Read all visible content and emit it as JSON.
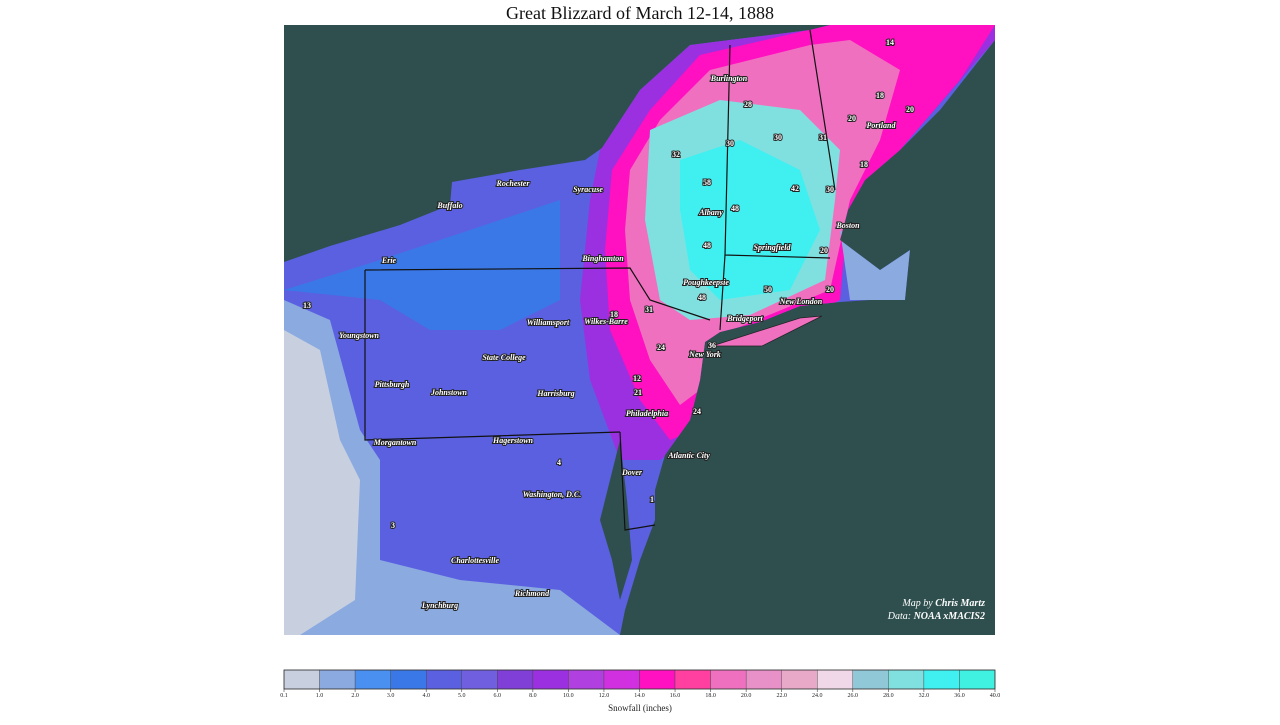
{
  "title": "Great Blizzard of March 12-14, 1888",
  "cities": [
    "Burlington",
    "Portland",
    "Rochester",
    "Syracuse",
    "Buffalo",
    "Albany",
    "Boston",
    "Springfield",
    "Erie",
    "Binghamton",
    "Poughkeepsie",
    "New London",
    "Youngstown",
    "Williamsport",
    "Wilkes-Barre",
    "Bridgeport",
    "New York",
    "State College",
    "Pittsburgh",
    "Johnstown",
    "Harrisburg",
    "Philadelphia",
    "Morgantown",
    "Hagerstown",
    "Atlantic City",
    "Dover",
    "Washington, D.C.",
    "Charlottesville",
    "Richmond",
    "Lynchburg"
  ],
  "snowfall_labels": [
    14,
    18,
    20,
    20,
    28,
    30,
    30,
    31,
    32,
    58,
    42,
    30,
    18,
    48,
    48,
    20,
    48,
    50,
    20,
    13,
    31,
    18,
    24,
    36,
    12,
    21,
    24,
    4,
    1,
    3
  ],
  "credits": {
    "map_by_label": "Map by",
    "map_by": "Chris Martz",
    "data_label": "Data:",
    "data": "NOAA xMACIS2"
  },
  "colorbar": {
    "label": "Snowfall (inches)",
    "ticks": [
      0.1,
      {
        "value": 1,
        "label": "1.0"
      },
      {
        "value": 2,
        "label": "2.0"
      },
      {
        "value": 3,
        "label": "3.0"
      },
      {
        "value": 4,
        "label": "4.0"
      },
      {
        "value": 5,
        "label": "5.0"
      },
      {
        "value": 6,
        "label": "6.0"
      },
      {
        "value": 8,
        "label": "8.0"
      },
      {
        "value": 10,
        "label": "10.0"
      },
      {
        "value": 12,
        "label": "12.0"
      },
      {
        "value": 14,
        "label": "14.0"
      },
      {
        "value": 16,
        "label": "16.0"
      },
      {
        "value": 18,
        "label": "18.0"
      },
      {
        "value": 20,
        "label": "20.0"
      },
      {
        "value": 22,
        "label": "22.0"
      },
      {
        "value": 24,
        "label": "24.0"
      },
      {
        "value": 26,
        "label": "26.0"
      },
      {
        "value": 28,
        "label": "28.0"
      },
      {
        "value": 32,
        "label": "32.0"
      },
      {
        "value": 36,
        "label": "36.0"
      },
      {
        "value": 40,
        "label": "40.0"
      }
    ],
    "colors": [
      "#c8d0e0",
      "#8aaae0",
      "#4a90f0",
      "#3a78e8",
      "#5a60e0",
      "#7060e0",
      "#8040d8",
      "#9a30e0",
      "#b040e0",
      "#d030e0",
      "#ff10c0",
      "#ff40a0",
      "#f070c0",
      "#e890c8",
      "#e8a8c8",
      "#f0d8e8",
      "#90c8d8",
      "#80e0e0",
      "#40f0f0",
      "#40f0e0"
    ]
  }
}
